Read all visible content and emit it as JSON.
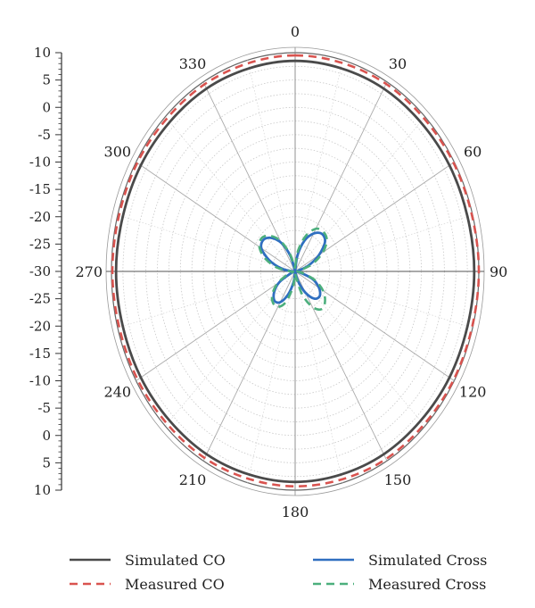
{
  "chart_data": {
    "type": "polar",
    "radial_axis": {
      "min": -30,
      "max": 10,
      "tick_labels_top_to_bottom": [
        "10",
        "5",
        "0",
        "-5",
        "-10",
        "-15",
        "-20",
        "-25",
        "-30",
        "-25",
        "-20",
        "-15",
        "-10",
        "-5",
        "0",
        "5",
        "10"
      ]
    },
    "angular_axis": {
      "direction": "clockwise",
      "zero_at": "top",
      "tick_labels": [
        "0",
        "30",
        "60",
        "90",
        "120",
        "150",
        "180",
        "210",
        "240",
        "270",
        "300",
        "330"
      ]
    },
    "grid": true,
    "legend_position": "bottom",
    "series": [
      {
        "name": "Simulated CO",
        "color": "#4a4a4a",
        "style": "solid",
        "angles": [
          0,
          30,
          60,
          90,
          120,
          150,
          180,
          210,
          240,
          270,
          300,
          330
        ],
        "values": [
          8.5,
          8.6,
          8.8,
          9.0,
          8.8,
          8.6,
          8.5,
          8.6,
          8.8,
          9.0,
          8.8,
          8.6
        ]
      },
      {
        "name": "Measured CO",
        "color": "#d9534f",
        "style": "dashed",
        "angles": [
          0,
          30,
          60,
          90,
          120,
          150,
          180,
          210,
          240,
          270,
          300,
          330
        ],
        "values": [
          9.5,
          9.6,
          9.8,
          10.0,
          9.8,
          9.6,
          9.3,
          9.4,
          9.6,
          9.8,
          9.7,
          9.5
        ]
      },
      {
        "name": "Simulated Cross",
        "color": "#2f6fc0",
        "style": "solid",
        "angles": [
          0,
          10,
          20,
          30,
          40,
          50,
          60,
          70,
          80,
          90,
          100,
          110,
          120,
          130,
          140,
          150,
          160,
          170,
          180,
          190,
          200,
          210,
          220,
          230,
          240,
          250,
          260,
          270,
          280,
          290,
          300,
          310,
          320,
          330,
          340,
          350
        ],
        "values": [
          -30,
          -27,
          -24,
          -22,
          -21,
          -21.5,
          -24,
          -27,
          -29.5,
          -30,
          -29,
          -26,
          -24,
          -23,
          -23.5,
          -25.5,
          -28,
          -30,
          -30,
          -28,
          -25.5,
          -23.5,
          -23,
          -24,
          -26,
          -29,
          -30,
          -29.5,
          -27,
          -24,
          -21.5,
          -21,
          -22,
          -24,
          -27,
          -30
        ]
      },
      {
        "name": "Measured Cross",
        "color": "#4caf7d",
        "style": "dashed",
        "angles": [
          0,
          10,
          20,
          30,
          40,
          50,
          60,
          70,
          80,
          90,
          100,
          110,
          120,
          130,
          140,
          150,
          160,
          170,
          180,
          190,
          200,
          210,
          220,
          230,
          240,
          250,
          260,
          270,
          280,
          290,
          300,
          310,
          320,
          330,
          340,
          350
        ],
        "values": [
          -29,
          -26,
          -23,
          -21,
          -20.5,
          -21,
          -23,
          -26,
          -29,
          -29.5,
          -28.5,
          -25.5,
          -23,
          -21.5,
          -21,
          -22.5,
          -25.5,
          -29,
          -29.5,
          -27,
          -24,
          -22.5,
          -22.5,
          -23.5,
          -25.5,
          -28,
          -29.5,
          -29,
          -26,
          -23,
          -21,
          -20.5,
          -21.5,
          -23.5,
          -26.5,
          -29
        ]
      }
    ]
  }
}
